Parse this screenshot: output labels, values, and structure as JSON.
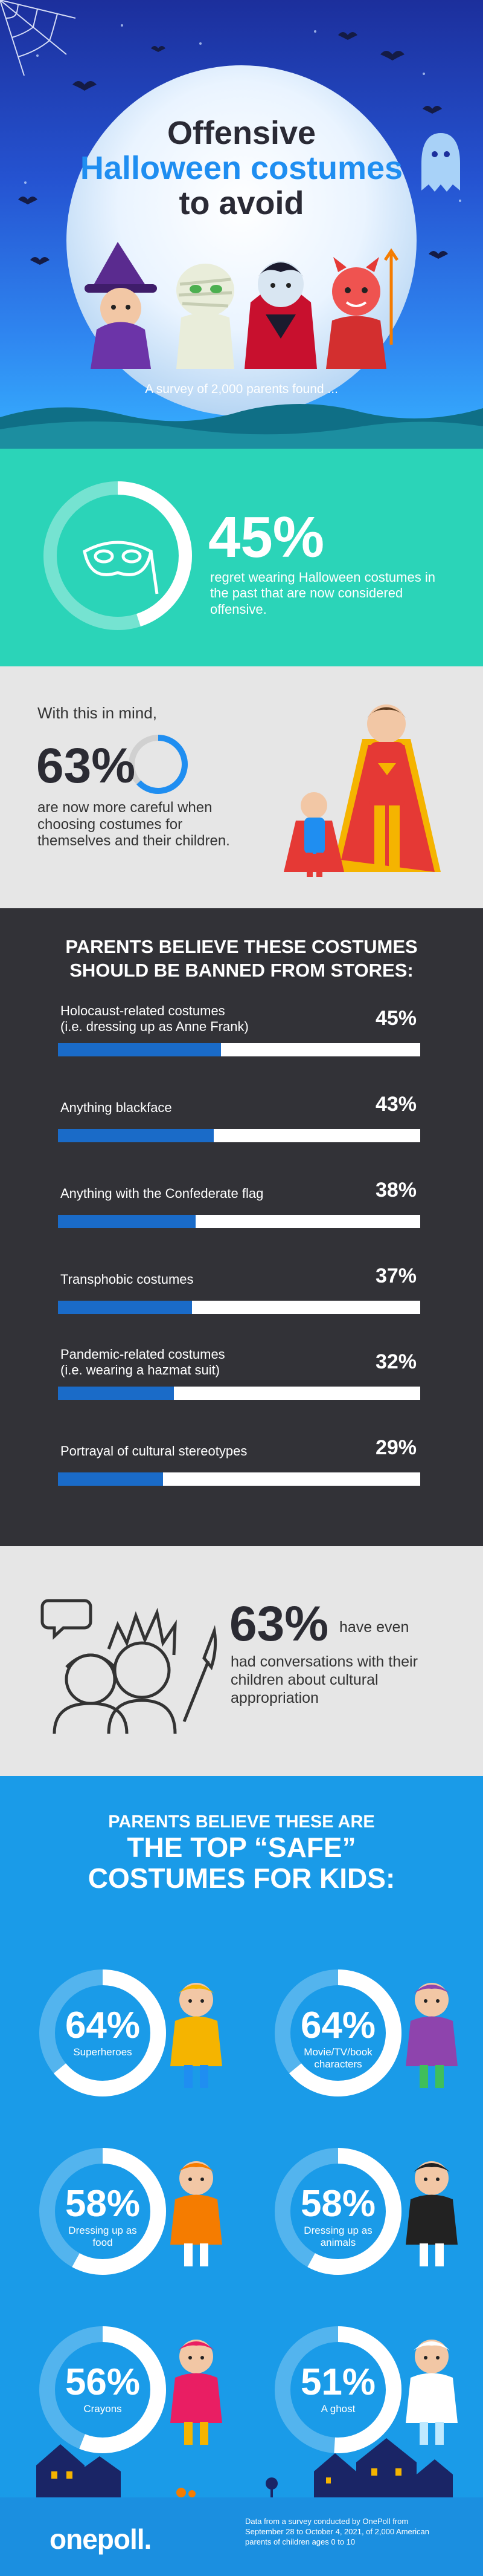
{
  "header": {
    "title_line1": "Offensive",
    "title_line2": "Halloween costumes",
    "title_line3": "to avoid",
    "subtitle": "A survey of 2,000 parents found ...",
    "colors": {
      "accent": "#1f8ef1",
      "sky": "#2553d1"
    }
  },
  "stat1": {
    "value": "45%",
    "text": "regret wearing Halloween costumes in the past that are now considered offensive.",
    "icon": "mask-icon"
  },
  "stat2": {
    "intro": "With this in mind,",
    "value": "63%",
    "text": "are now more careful when choosing costumes for themselves and their children.",
    "ring_fraction": 0.63
  },
  "banned": {
    "heading_line1": "PARENTS BELIEVE THESE COSTUMES",
    "heading_line2": "SHOULD BE BANNED FROM STORES:",
    "items": [
      {
        "label": "Holocaust-related costumes\n(i.e. dressing up as Anne Frank)",
        "pct": "45%",
        "value": 45
      },
      {
        "label": "Anything blackface",
        "pct": "43%",
        "value": 43
      },
      {
        "label": "Anything with the Confederate flag",
        "pct": "38%",
        "value": 38
      },
      {
        "label": "Transphobic costumes",
        "pct": "37%",
        "value": 37
      },
      {
        "label": "Pandemic-related costumes\n(i.e. wearing a hazmat suit)",
        "pct": "32%",
        "value": 32
      },
      {
        "label": "Portrayal of cultural stereotypes",
        "pct": "29%",
        "value": 29
      }
    ]
  },
  "stat3": {
    "value": "63%",
    "text_line1": "have even",
    "text_rest": "had conversations with their children about cultural appropriation"
  },
  "safe": {
    "heading_line1": "PARENTS BELIEVE THESE ARE",
    "heading_line2": "THE TOP “SAFE”",
    "heading_line3": "COSTUMES FOR KIDS:",
    "items": [
      {
        "pct": "64%",
        "label": "Superheroes",
        "value": 64,
        "icon": "superhero-kid-icon"
      },
      {
        "pct": "64%",
        "label": "Movie/TV/book characters",
        "value": 64,
        "icon": "joker-kid-icon"
      },
      {
        "pct": "58%",
        "label": "Dressing up as food",
        "value": 58,
        "icon": "pumpkin-kid-icon"
      },
      {
        "pct": "58%",
        "label": "Dressing up as animals",
        "value": 58,
        "icon": "panda-kid-icon"
      },
      {
        "pct": "56%",
        "label": "Crayons",
        "value": 56,
        "icon": "crayon-kid-icon"
      },
      {
        "pct": "51%",
        "label": "A ghost",
        "value": 51,
        "icon": "ghost-kid-icon"
      }
    ]
  },
  "footer": {
    "brand": "onepoll.",
    "note": "Data from a survey conducted by OnePoll from September 28 to October 4, 2021, of 2,000 American parents of children ages 0 to 10"
  },
  "chart_data": {
    "type": "bar",
    "categories": [
      "Holocaust-related costumes (i.e. dressing up as Anne Frank)",
      "Anything blackface",
      "Anything with the Confederate flag",
      "Transphobic costumes",
      "Pandemic-related costumes (i.e. wearing a hazmat suit)",
      "Portrayal of cultural stereotypes"
    ],
    "values": [
      45,
      43,
      38,
      37,
      32,
      29
    ],
    "title": "PARENTS BELIEVE THESE COSTUMES SHOULD BE BANNED FROM STORES:",
    "ylim": [
      0,
      100
    ]
  }
}
